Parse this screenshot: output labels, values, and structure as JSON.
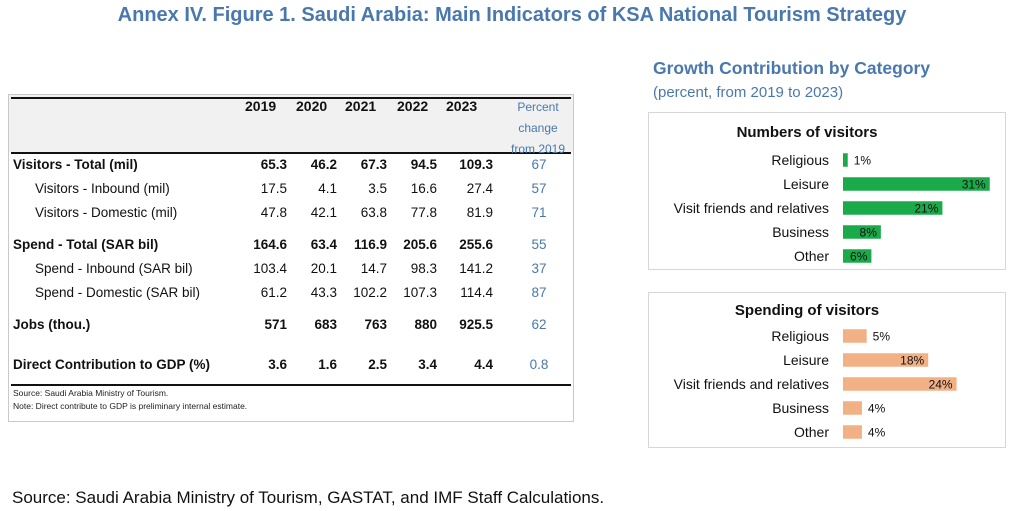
{
  "figure": {
    "title": "Annex IV. Figure 1. Saudi Arabia: Main Indicators of KSA National Tourism Strategy",
    "source": "Source: Saudi Arabia Ministry of Tourism, GASTAT, and IMF Staff Calculations."
  },
  "table": {
    "years": [
      "2019",
      "2020",
      "2021",
      "2022",
      "2023"
    ],
    "pct_header": [
      "Percent",
      "change",
      "from 2019"
    ],
    "rows": [
      {
        "label": "Visitors - Total (mil)",
        "values": [
          "65.3",
          "46.2",
          "67.3",
          "94.5",
          "109.3"
        ],
        "pct": "67",
        "bold": true
      },
      {
        "label": "Visitors - Inbound (mil)",
        "values": [
          "17.5",
          "4.1",
          "3.5",
          "16.6",
          "27.4"
        ],
        "pct": "57",
        "bold": false
      },
      {
        "label": "Visitors - Domestic (mil)",
        "values": [
          "47.8",
          "42.1",
          "63.8",
          "77.8",
          "81.9"
        ],
        "pct": "71",
        "bold": false
      },
      {
        "label": "Spend - Total (SAR bil)",
        "values": [
          "164.6",
          "63.4",
          "116.9",
          "205.6",
          "255.6"
        ],
        "pct": "55",
        "bold": true
      },
      {
        "label": "Spend - Inbound (SAR bil)",
        "values": [
          "103.4",
          "20.1",
          "14.7",
          "98.3",
          "141.2"
        ],
        "pct": "37",
        "bold": false
      },
      {
        "label": "Spend - Domestic (SAR bil)",
        "values": [
          "61.2",
          "43.3",
          "102.2",
          "107.3",
          "114.4"
        ],
        "pct": "87",
        "bold": false
      },
      {
        "label": "Jobs (thou.)",
        "values": [
          "571",
          "683",
          "763",
          "880",
          "925.5"
        ],
        "pct": "62",
        "bold": true
      },
      {
        "label": "Direct Contribution to GDP (%)",
        "values": [
          "3.6",
          "1.6",
          "2.5",
          "3.4",
          "4.4"
        ],
        "pct": "0.8",
        "bold": true
      }
    ],
    "notes": [
      "Source: Saudi Arabia Ministry of Tourism.",
      "Note: Direct contribute to GDP is preliminary internal estimate."
    ]
  },
  "charts_header": {
    "title": "Growth Contribution by Category",
    "subtitle": "(percent, from 2019 to 2023)"
  },
  "chart_data": [
    {
      "type": "bar",
      "orientation": "horizontal",
      "title": "Numbers of visitors",
      "categories": [
        "Religious",
        "Leisure",
        "Visit friends and relatives",
        "Business",
        "Other"
      ],
      "values": [
        1,
        31,
        21,
        8,
        6
      ],
      "labels": [
        "1%",
        "31%",
        "21%",
        "8%",
        "6%"
      ],
      "color": "#1aaa4a",
      "xlim": [
        0,
        35
      ]
    },
    {
      "type": "bar",
      "orientation": "horizontal",
      "title": "Spending of visitors",
      "categories": [
        "Religious",
        "Leisure",
        "Visit friends and relatives",
        "Business",
        "Other"
      ],
      "values": [
        5,
        18,
        24,
        4,
        4
      ],
      "labels": [
        "5%",
        "18%",
        "24%",
        "4%",
        "4%"
      ],
      "color": "#f2b185",
      "xlim": [
        0,
        35
      ]
    }
  ]
}
